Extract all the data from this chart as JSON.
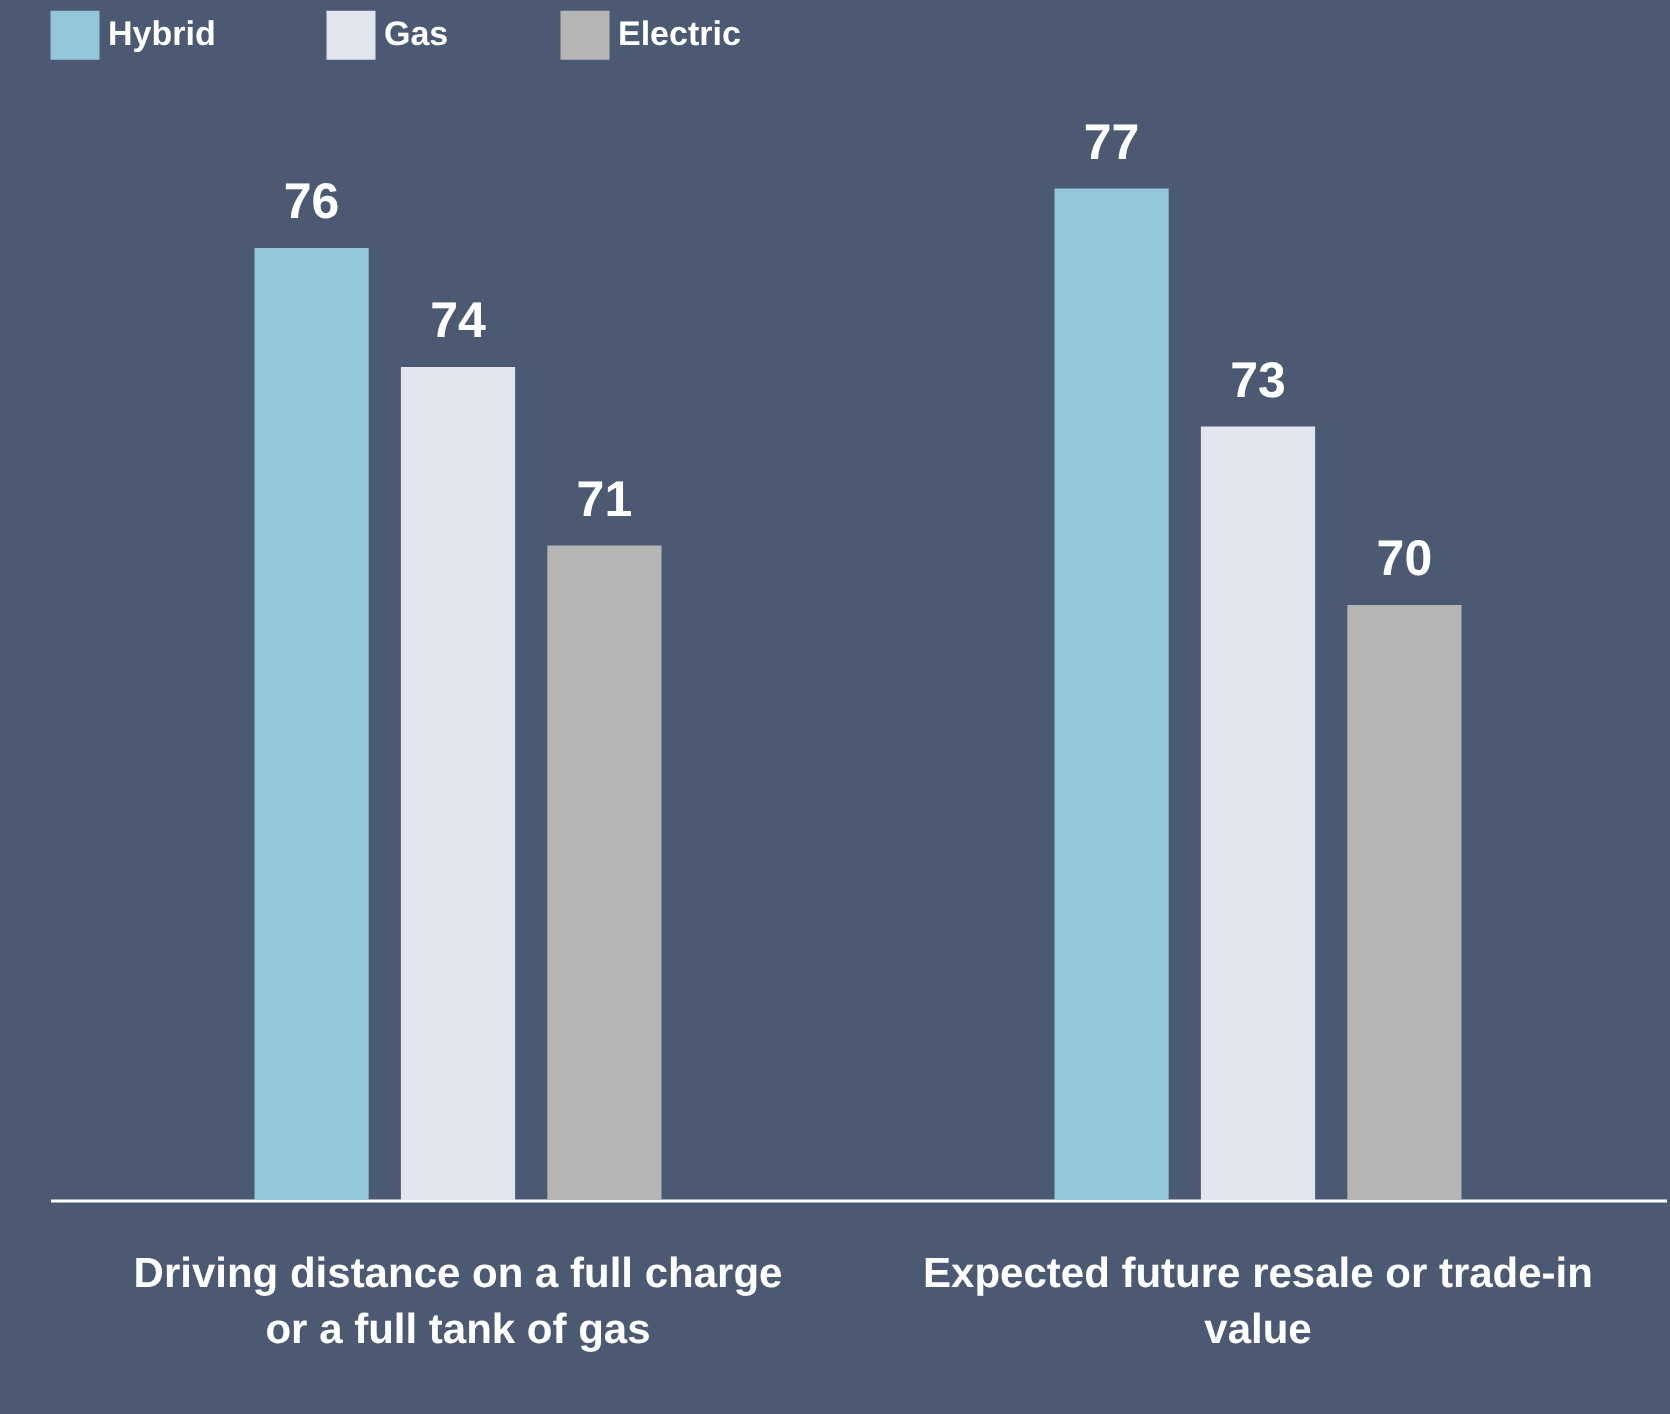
{
  "chart_data": {
    "type": "bar",
    "categories": [
      "Driving distance on a full charge or a full tank of gas",
      "Expected future resale or trade-in value"
    ],
    "series": [
      {
        "name": "Hybrid",
        "color": "#93c6d9",
        "values": [
          76,
          77
        ]
      },
      {
        "name": "Gas",
        "color": "#e2e5ee",
        "values": [
          74,
          73
        ]
      },
      {
        "name": "Electric",
        "color": "#b5b5b5",
        "values": [
          71,
          70
        ]
      }
    ],
    "ylim": [
      60,
      80
    ],
    "data_labels": true,
    "legend": "top left"
  }
}
